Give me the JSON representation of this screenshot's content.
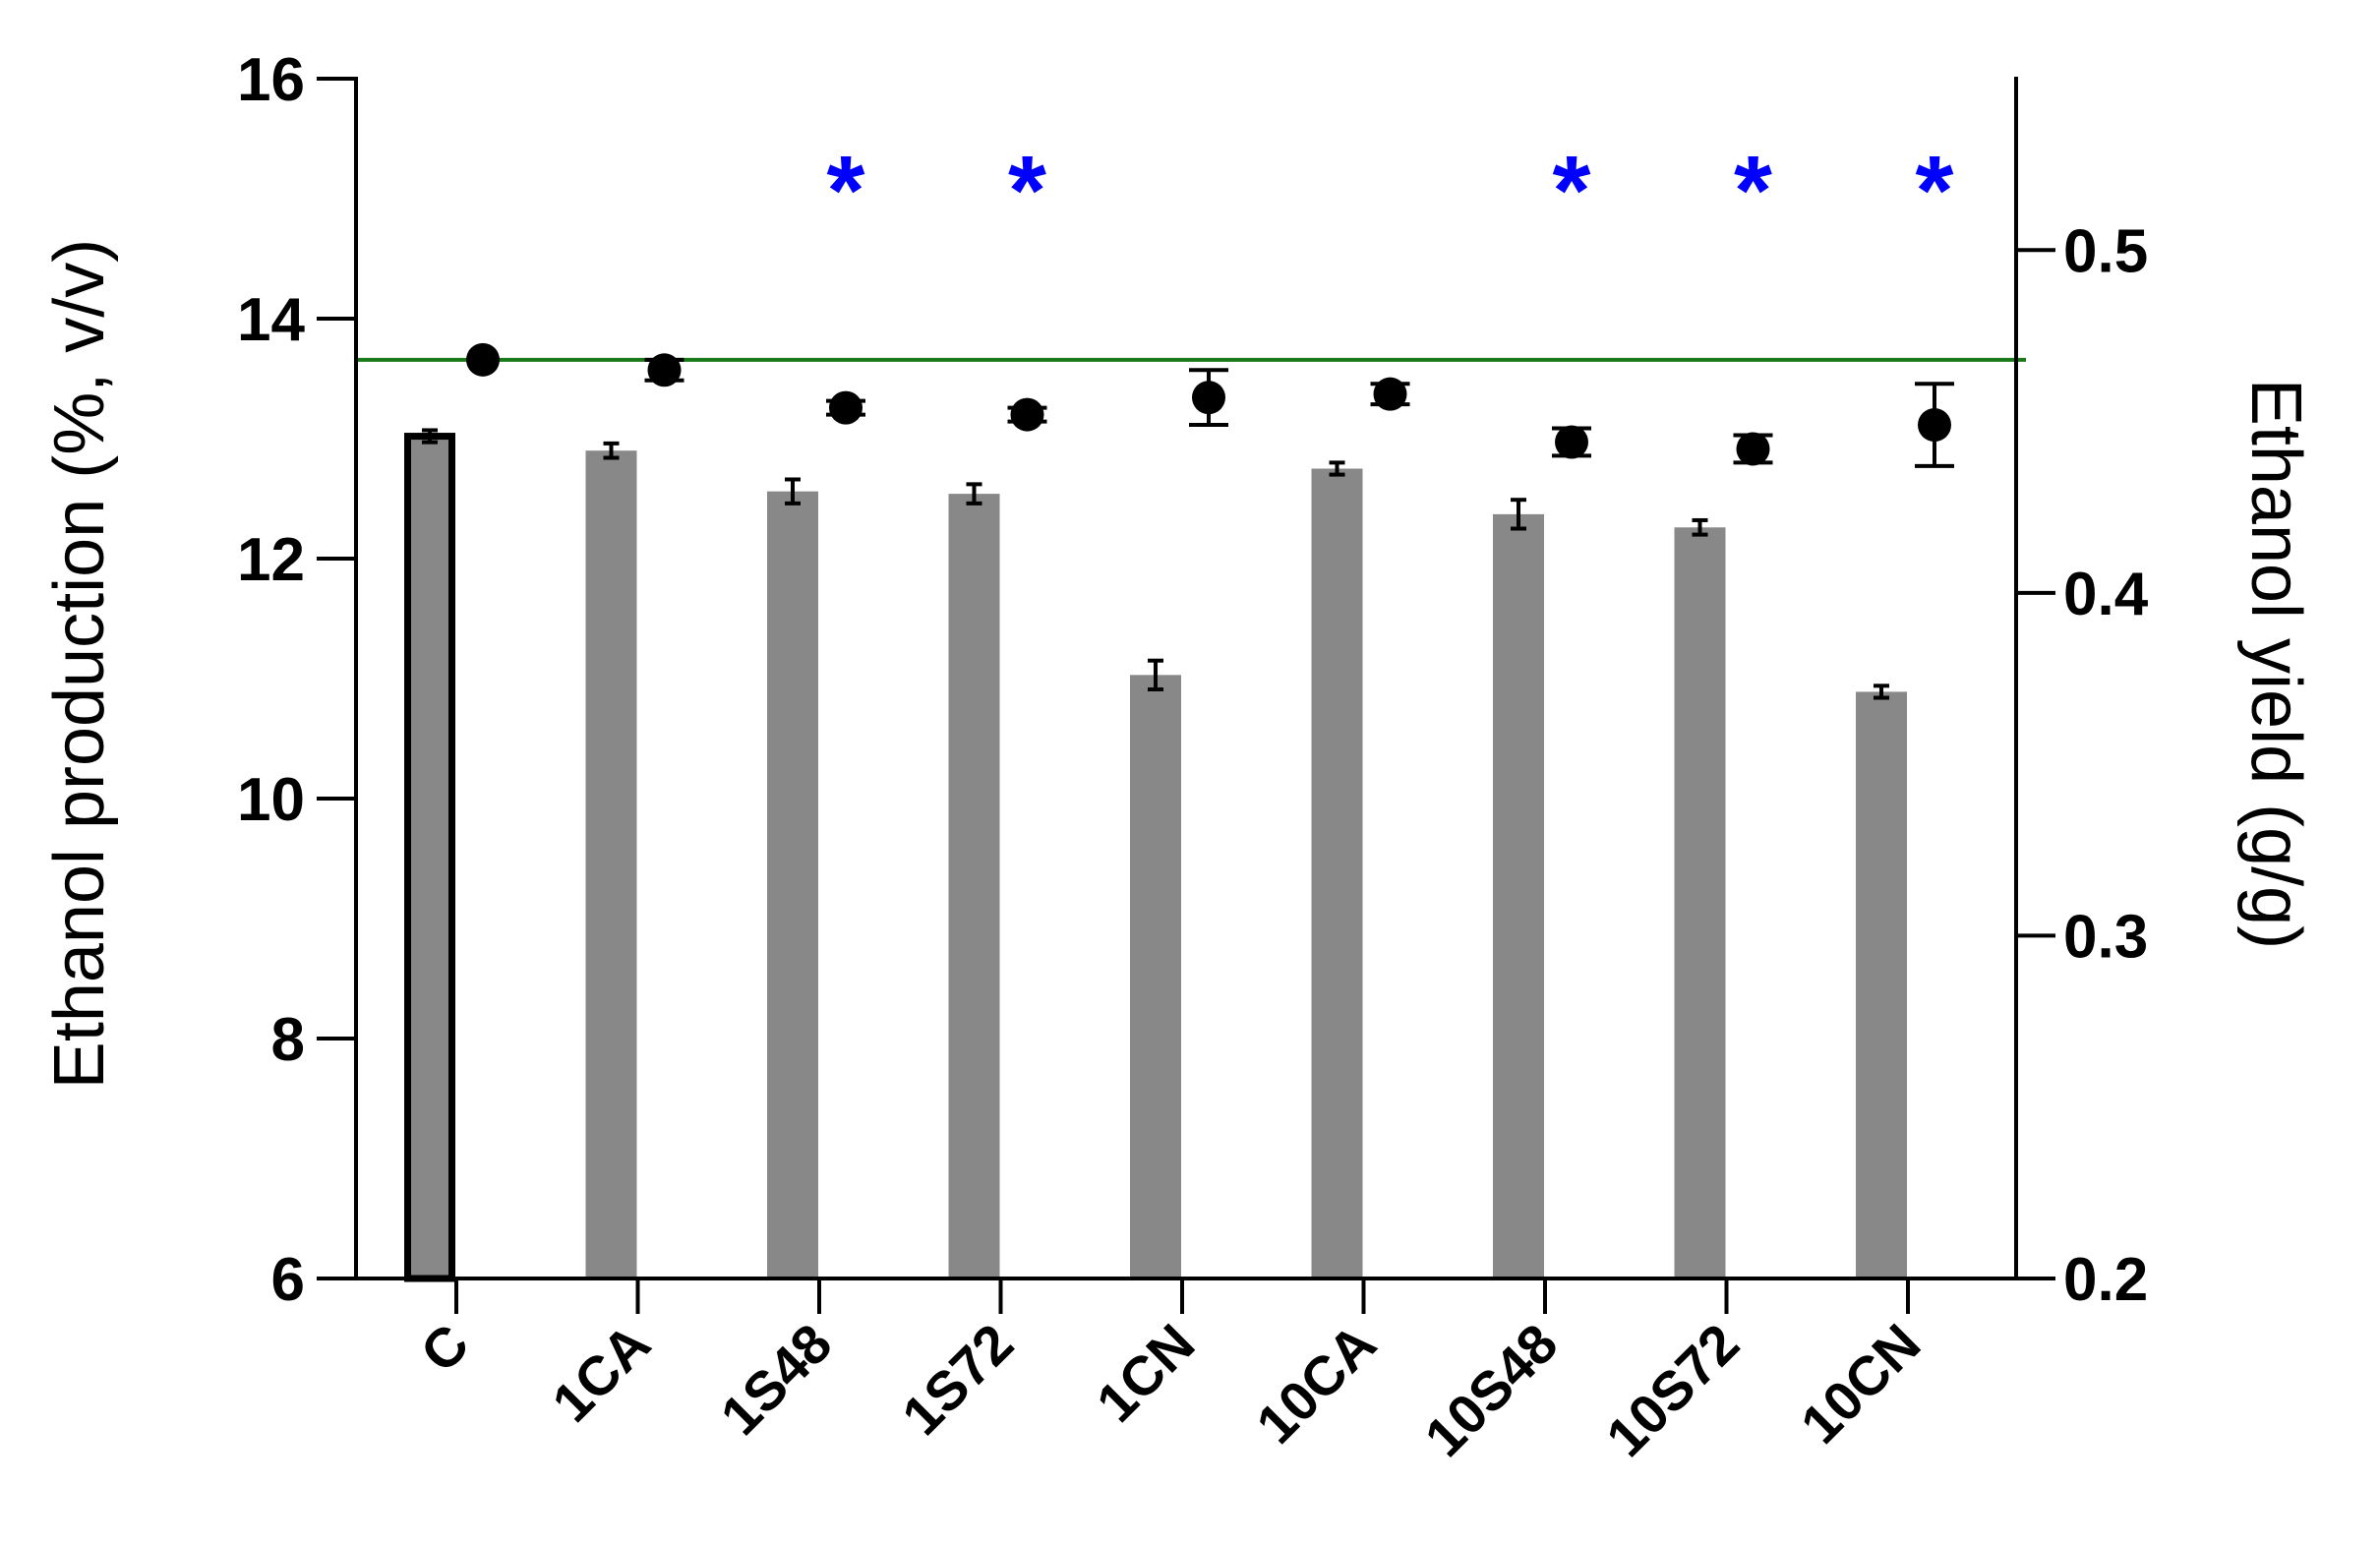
{
  "chart_data": {
    "type": "bar",
    "categories": [
      "C",
      "1CA",
      "1S48",
      "1S72",
      "1CN",
      "10CA",
      "10S48",
      "10S72",
      "10CN"
    ],
    "series": [
      {
        "axis": "left",
        "mark": "bar",
        "values": [
          13.02,
          12.9,
          12.56,
          12.54,
          11.03,
          12.75,
          12.37,
          12.26,
          10.89
        ],
        "errors": [
          0.05,
          0.06,
          0.1,
          0.08,
          0.12,
          0.05,
          0.12,
          0.06,
          0.05
        ],
        "color": "#888888"
      },
      {
        "axis": "right",
        "mark": "point",
        "values": [
          0.468,
          0.465,
          0.454,
          0.452,
          0.457,
          0.458,
          0.444,
          0.442,
          0.449
        ],
        "errors": [
          0.0,
          0.003,
          0.002,
          0.002,
          0.008,
          0.003,
          0.004,
          0.004,
          0.012
        ],
        "color": "#000000"
      }
    ],
    "left_axis": {
      "label": "Ethanol production (%, v/v)",
      "ylim": [
        6,
        16
      ],
      "ticks": [
        "6",
        "8",
        "10",
        "12",
        "14",
        "16"
      ]
    },
    "right_axis": {
      "label": "Ethanol yield (g/g)",
      "ylim": [
        0.2,
        0.55
      ],
      "ticks": [
        "0.2",
        "0.3",
        "0.4",
        "0.5"
      ]
    },
    "reference_line": {
      "axis": "right",
      "value": 0.468,
      "color": "#1a7a1a"
    },
    "significance_markers": [
      {
        "category": "1S48",
        "symbol": "*"
      },
      {
        "category": "1S72",
        "symbol": "*"
      },
      {
        "category": "10S48",
        "symbol": "*"
      },
      {
        "category": "10S72",
        "symbol": "*"
      },
      {
        "category": "10CN",
        "symbol": "*"
      }
    ],
    "significance_color": "#0000ff",
    "highlighted_bar": "C",
    "grid": false,
    "legend": "none"
  }
}
